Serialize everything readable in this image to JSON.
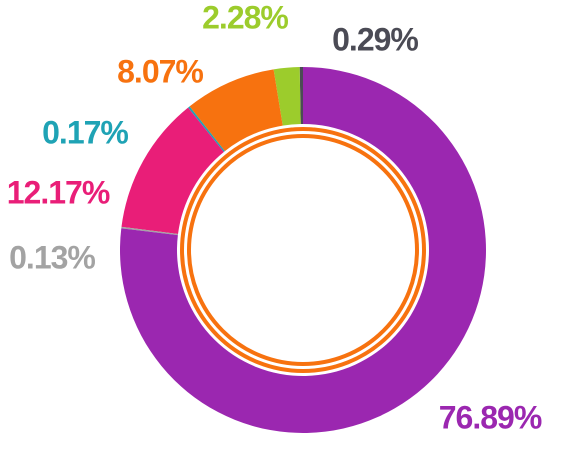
{
  "chart_data": {
    "type": "donut",
    "values": [
      76.89,
      0.13,
      12.17,
      0.17,
      8.07,
      2.28,
      0.29
    ],
    "value_labels": [
      "76.89%",
      "0.13%",
      "12.17%",
      "0.17%",
      "8.07%",
      "2.28%",
      "0.29%"
    ],
    "colors": [
      "#9b27b0",
      "#a3a3a3",
      "#e91e78",
      "#1fa3b5",
      "#f7720f",
      "#9ccc2c",
      "#4b4b55"
    ]
  }
}
